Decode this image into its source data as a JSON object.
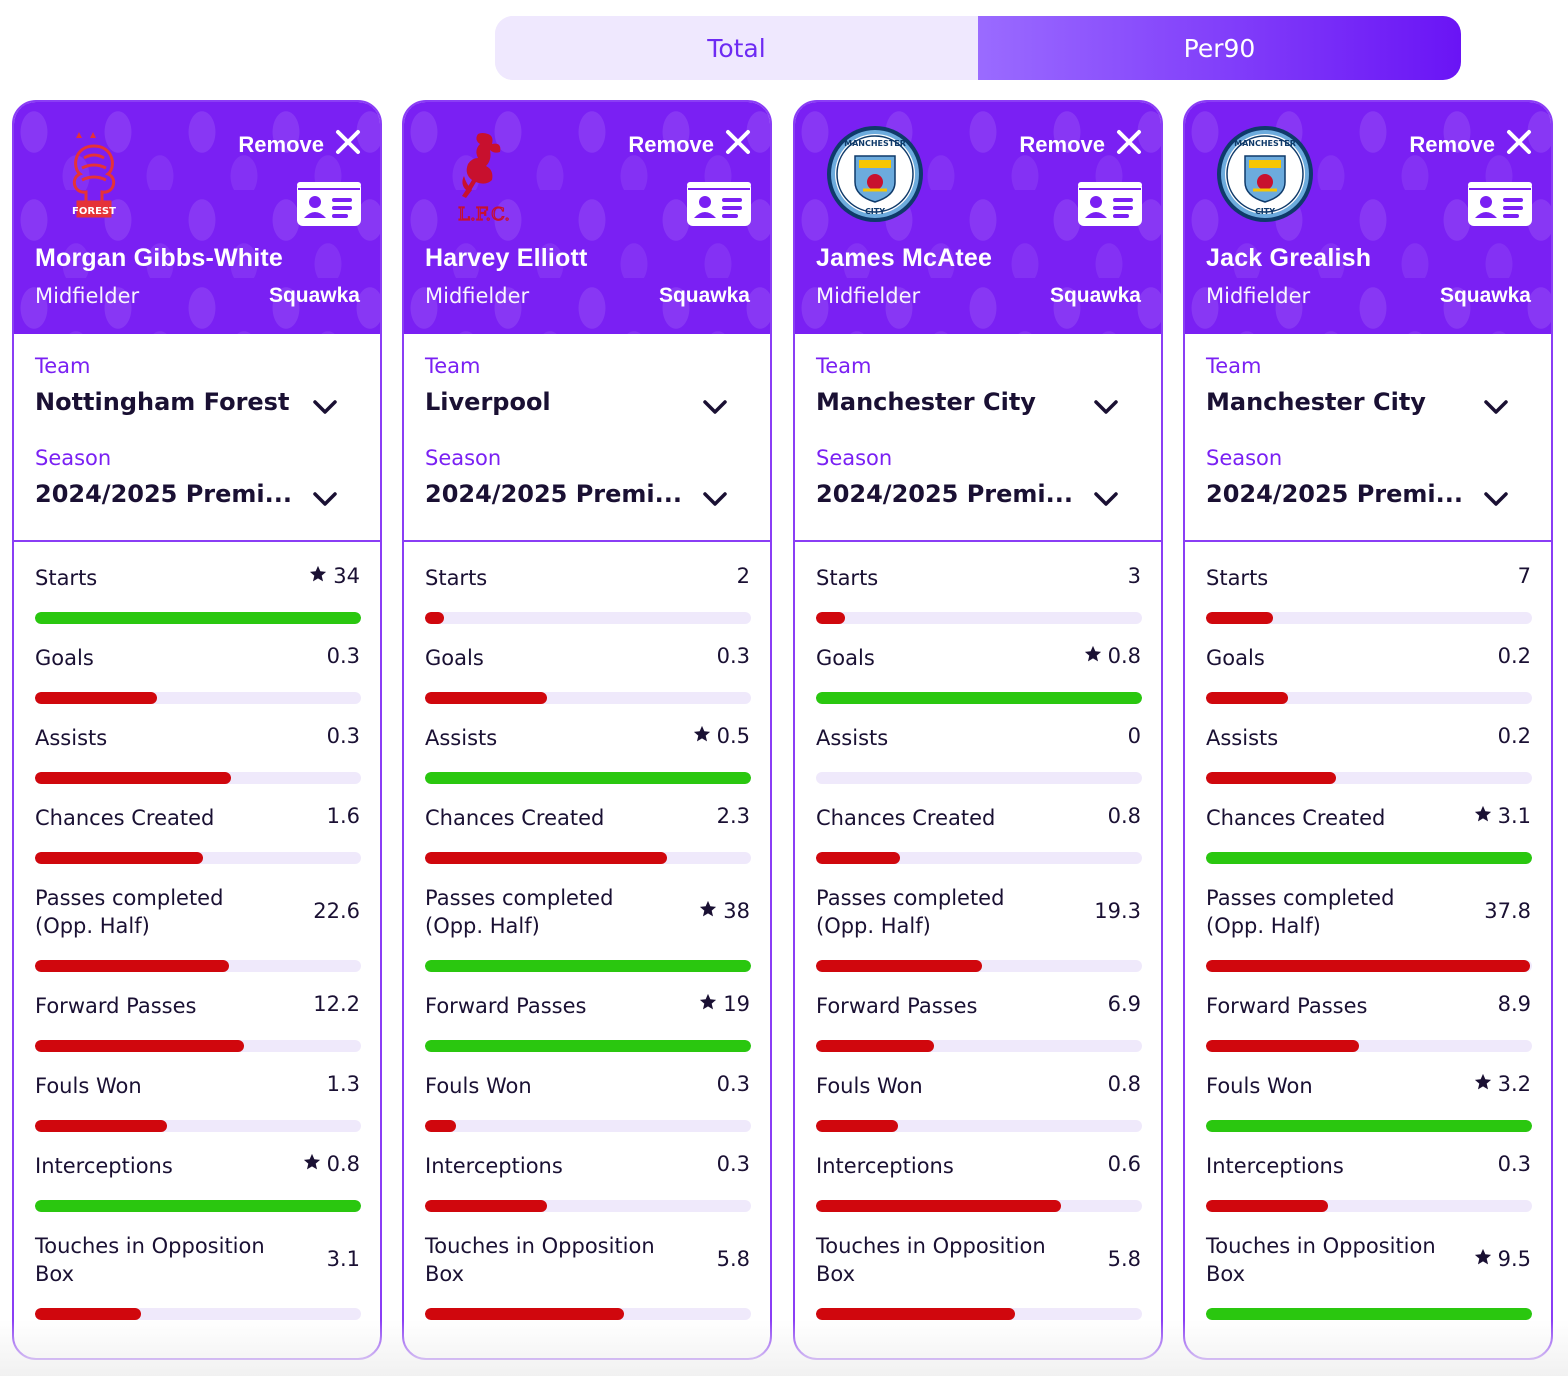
{
  "toggle": {
    "options": [
      "Total",
      "Per90"
    ],
    "active": "Per90"
  },
  "colors": {
    "accent": "#7a20f3",
    "good": "#2ac70f",
    "bad": "#d0070d",
    "track": "#efe9fb"
  },
  "players": [
    {
      "name": "Morgan Gibbs-White",
      "position": "Midfielder",
      "source": "Squawka",
      "remove_label": "Remove",
      "team_label": "Team",
      "team": "Nottingham Forest",
      "season_label": "Season",
      "season": "2024/2025 Premi...",
      "logo": "nottingham-forest-crest",
      "stats": [
        {
          "label": "Starts",
          "value": "34",
          "best": true,
          "fill": 1.0
        },
        {
          "label": "Goals",
          "value": "0.3",
          "best": false,
          "fill": 0.375
        },
        {
          "label": "Assists",
          "value": "0.3",
          "best": false,
          "fill": 0.6
        },
        {
          "label": "Chances Created",
          "value": "1.6",
          "best": false,
          "fill": 0.516
        },
        {
          "label": "Passes completed (Opp. Half)",
          "value": "22.6",
          "best": false,
          "fill": 0.595
        },
        {
          "label": "Forward Passes",
          "value": "12.2",
          "best": false,
          "fill": 0.642
        },
        {
          "label": "Fouls Won",
          "value": "1.3",
          "best": false,
          "fill": 0.406
        },
        {
          "label": "Interceptions",
          "value": "0.8",
          "best": true,
          "fill": 1.0
        },
        {
          "label": "Touches in Opposition Box",
          "value": "3.1",
          "best": false,
          "fill": 0.326
        }
      ]
    },
    {
      "name": "Harvey Elliott",
      "position": "Midfielder",
      "source": "Squawka",
      "remove_label": "Remove",
      "team_label": "Team",
      "team": "Liverpool",
      "season_label": "Season",
      "season": "2024/2025 Premi...",
      "logo": "liverpool-crest",
      "stats": [
        {
          "label": "Starts",
          "value": "2",
          "best": false,
          "fill": 0.059
        },
        {
          "label": "Goals",
          "value": "0.3",
          "best": false,
          "fill": 0.375
        },
        {
          "label": "Assists",
          "value": "0.5",
          "best": true,
          "fill": 1.0
        },
        {
          "label": "Chances Created",
          "value": "2.3",
          "best": false,
          "fill": 0.742
        },
        {
          "label": "Passes completed (Opp. Half)",
          "value": "38",
          "best": true,
          "fill": 1.0
        },
        {
          "label": "Forward Passes",
          "value": "19",
          "best": true,
          "fill": 1.0
        },
        {
          "label": "Fouls Won",
          "value": "0.3",
          "best": false,
          "fill": 0.094
        },
        {
          "label": "Interceptions",
          "value": "0.3",
          "best": false,
          "fill": 0.375
        },
        {
          "label": "Touches in Opposition Box",
          "value": "5.8",
          "best": false,
          "fill": 0.611
        }
      ]
    },
    {
      "name": "James McAtee",
      "position": "Midfielder",
      "source": "Squawka",
      "remove_label": "Remove",
      "team_label": "Team",
      "team": "Manchester City",
      "season_label": "Season",
      "season": "2024/2025 Premi...",
      "logo": "manchester-city-crest",
      "stats": [
        {
          "label": "Starts",
          "value": "3",
          "best": false,
          "fill": 0.088
        },
        {
          "label": "Goals",
          "value": "0.8",
          "best": true,
          "fill": 1.0
        },
        {
          "label": "Assists",
          "value": "0",
          "best": false,
          "fill": 0.0
        },
        {
          "label": "Chances Created",
          "value": "0.8",
          "best": false,
          "fill": 0.258
        },
        {
          "label": "Passes completed (Opp. Half)",
          "value": "19.3",
          "best": false,
          "fill": 0.508
        },
        {
          "label": "Forward Passes",
          "value": "6.9",
          "best": false,
          "fill": 0.363
        },
        {
          "label": "Fouls Won",
          "value": "0.8",
          "best": false,
          "fill": 0.25
        },
        {
          "label": "Interceptions",
          "value": "0.6",
          "best": false,
          "fill": 0.75
        },
        {
          "label": "Touches in Opposition Box",
          "value": "5.8",
          "best": false,
          "fill": 0.611
        }
      ]
    },
    {
      "name": "Jack Grealish",
      "position": "Midfielder",
      "source": "Squawka",
      "remove_label": "Remove",
      "team_label": "Team",
      "team": "Manchester City",
      "season_label": "Season",
      "season": "2024/2025 Premi...",
      "logo": "manchester-city-crest",
      "stats": [
        {
          "label": "Starts",
          "value": "7",
          "best": false,
          "fill": 0.206
        },
        {
          "label": "Goals",
          "value": "0.2",
          "best": false,
          "fill": 0.25
        },
        {
          "label": "Assists",
          "value": "0.2",
          "best": false,
          "fill": 0.4
        },
        {
          "label": "Chances Created",
          "value": "3.1",
          "best": true,
          "fill": 1.0
        },
        {
          "label": "Passes completed (Opp. Half)",
          "value": "37.8",
          "best": false,
          "fill": 0.995
        },
        {
          "label": "Forward Passes",
          "value": "8.9",
          "best": false,
          "fill": 0.468
        },
        {
          "label": "Fouls Won",
          "value": "3.2",
          "best": true,
          "fill": 1.0
        },
        {
          "label": "Interceptions",
          "value": "0.3",
          "best": false,
          "fill": 0.375
        },
        {
          "label": "Touches in Opposition Box",
          "value": "9.5",
          "best": true,
          "fill": 1.0
        }
      ]
    }
  ]
}
